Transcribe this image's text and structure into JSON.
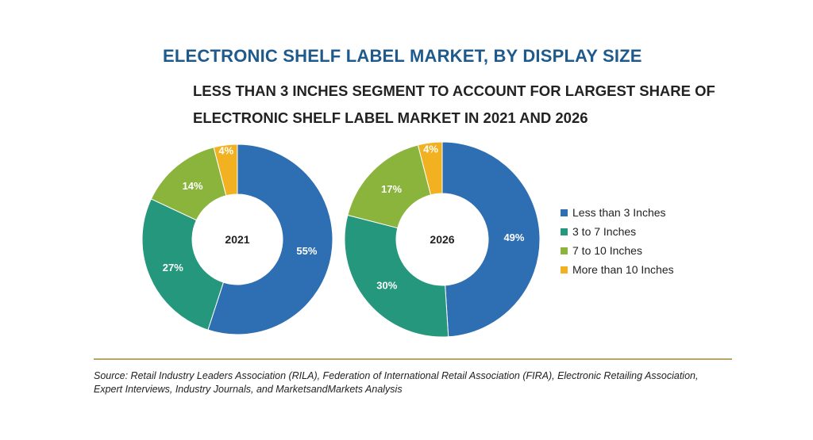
{
  "header": {
    "title": "ELECTRONIC SHELF LABEL MARKET, BY DISPLAY SIZE",
    "subtitle_line1": "LESS THAN 3 INCHES SEGMENT TO ACCOUNT FOR LARGEST SHARE OF",
    "subtitle_line2": "ELECTRONIC SHELF LABEL MARKET IN 2021 AND 2026"
  },
  "colors": {
    "less_than_3": "#2e6eb3",
    "three_to_7": "#24977c",
    "seven_to_10": "#8ab43b",
    "more_than_10": "#f2b120",
    "title": "#1f5a8c"
  },
  "chart_data": [
    {
      "type": "pie",
      "variant": "donut",
      "center_label": "2021",
      "categories": [
        "Less than 3 Inches",
        "3 to 7 Inches",
        "7 to 10 Inches",
        "More than 10 Inches"
      ],
      "values": [
        55,
        27,
        14,
        4
      ],
      "labels": [
        "55%",
        "27%",
        "14%",
        "4%"
      ]
    },
    {
      "type": "pie",
      "variant": "donut",
      "center_label": "2026",
      "categories": [
        "Less than 3 Inches",
        "3 to 7 Inches",
        "7 to 10 Inches",
        "More than 10 Inches"
      ],
      "values": [
        49,
        30,
        17,
        4
      ],
      "labels": [
        "49%",
        "30%",
        "17%",
        "4%"
      ]
    }
  ],
  "legend": {
    "position": "right",
    "items": [
      "Less than 3 Inches",
      "3 to 7 Inches",
      "7 to 10 Inches",
      "More than 10 Inches"
    ]
  },
  "source": "Source: Retail Industry Leaders Association (RILA), Federation of International Retail Association (FIRA), Electronic Retailing Association, Expert Interviews, Industry Journals, and MarketsandMarkets Analysis"
}
